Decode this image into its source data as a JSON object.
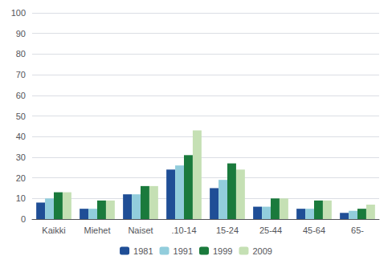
{
  "chart_data": {
    "type": "bar",
    "categories": [
      "Kaikki",
      "Miehet",
      "Naiset",
      ".10-14",
      "15-24",
      "25-44",
      "45-64",
      "65-"
    ],
    "series": [
      {
        "name": "1981",
        "color": "#1F4E96",
        "values": [
          8,
          5,
          12,
          24,
          15,
          6,
          5,
          3
        ]
      },
      {
        "name": "1991",
        "color": "#92CDDC",
        "values": [
          10,
          5,
          12,
          26,
          19,
          6,
          5,
          4
        ]
      },
      {
        "name": "1999",
        "color": "#1A7A3C",
        "values": [
          13,
          9,
          16,
          31,
          27,
          10,
          9,
          5
        ]
      },
      {
        "name": "2009",
        "color": "#C5E0B4",
        "values": [
          13,
          9,
          16,
          43,
          24,
          10,
          9,
          7
        ]
      }
    ],
    "ylim": [
      0,
      100
    ],
    "yticks": [
      0,
      10,
      20,
      30,
      40,
      50,
      60,
      70,
      80,
      90,
      100
    ],
    "grid": true,
    "legend": "bottom"
  }
}
